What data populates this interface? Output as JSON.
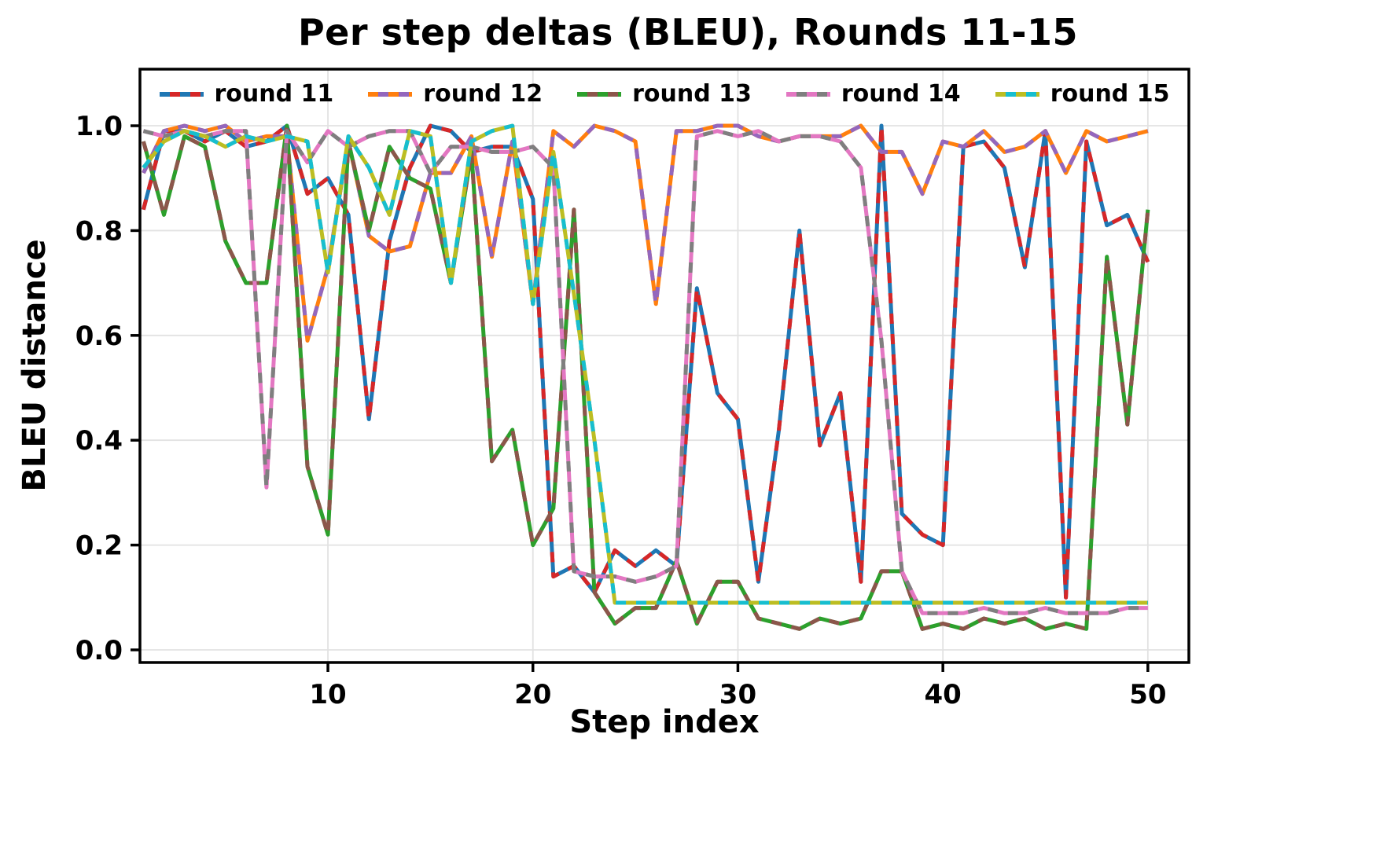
{
  "chart_data": {
    "type": "line",
    "title": "Per step deltas (BLEU), Rounds 11-15",
    "xlabel": "Step index",
    "ylabel": "BLEU distance",
    "xlim": [
      0.83,
      52.0
    ],
    "ylim": [
      -0.024,
      1.108
    ],
    "x_ticks": [
      10,
      20,
      30,
      40,
      50
    ],
    "y_ticks": [
      0.0,
      0.2,
      0.4,
      0.6,
      0.8,
      1.0
    ],
    "grid": true,
    "legend_position": "top",
    "grid_color": "#e2e2e2",
    "spine_color": "#000000",
    "x": [
      1,
      2,
      3,
      4,
      5,
      6,
      7,
      8,
      9,
      10,
      11,
      12,
      13,
      14,
      15,
      16,
      17,
      18,
      19,
      20,
      21,
      22,
      23,
      24,
      25,
      26,
      27,
      28,
      29,
      30,
      31,
      32,
      33,
      34,
      35,
      36,
      37,
      38,
      39,
      40,
      41,
      42,
      43,
      44,
      45,
      46,
      47,
      48,
      49,
      50
    ],
    "series": [
      {
        "name": "round 11",
        "colors": [
          "#1f77b4",
          "#d62728"
        ],
        "values": [
          0.84,
          0.99,
          0.99,
          0.97,
          0.99,
          0.96,
          0.97,
          1.0,
          0.87,
          0.9,
          0.83,
          0.44,
          0.78,
          0.92,
          1.0,
          0.99,
          0.95,
          0.96,
          0.96,
          0.86,
          0.14,
          0.16,
          0.11,
          0.19,
          0.16,
          0.19,
          0.16,
          0.69,
          0.49,
          0.44,
          0.13,
          0.42,
          0.8,
          0.39,
          0.49,
          0.13,
          1.0,
          0.26,
          0.22,
          0.2,
          0.96,
          0.97,
          0.92,
          0.73,
          0.99,
          0.1,
          0.97,
          0.81,
          0.83,
          0.74
        ]
      },
      {
        "name": "round 12",
        "colors": [
          "#ff7f0e",
          "#9467bd"
        ],
        "values": [
          0.91,
          0.99,
          1.0,
          0.99,
          1.0,
          0.97,
          0.98,
          0.98,
          0.59,
          0.73,
          0.97,
          0.79,
          0.76,
          0.77,
          0.91,
          0.91,
          0.98,
          0.75,
          0.97,
          0.66,
          0.99,
          0.96,
          1.0,
          0.99,
          0.97,
          0.66,
          0.99,
          0.99,
          1.0,
          1.0,
          0.98,
          0.97,
          0.98,
          0.98,
          0.98,
          1.0,
          0.95,
          0.95,
          0.87,
          0.97,
          0.96,
          0.99,
          0.95,
          0.96,
          0.99,
          0.91,
          0.99,
          0.97,
          0.98,
          0.99
        ]
      },
      {
        "name": "round 13",
        "colors": [
          "#2ca02c",
          "#8c564b"
        ],
        "values": [
          0.97,
          0.83,
          0.98,
          0.96,
          0.78,
          0.7,
          0.7,
          1.0,
          0.35,
          0.22,
          0.97,
          0.8,
          0.96,
          0.9,
          0.88,
          0.7,
          0.95,
          0.36,
          0.42,
          0.2,
          0.27,
          0.84,
          0.11,
          0.05,
          0.08,
          0.08,
          0.17,
          0.05,
          0.13,
          0.13,
          0.06,
          0.05,
          0.04,
          0.06,
          0.05,
          0.06,
          0.15,
          0.15,
          0.04,
          0.05,
          0.04,
          0.06,
          0.05,
          0.06,
          0.04,
          0.05,
          0.04,
          0.75,
          0.43,
          0.84
        ]
      },
      {
        "name": "round 14",
        "colors": [
          "#e377c2",
          "#7f7f7f"
        ],
        "values": [
          0.99,
          0.98,
          0.99,
          0.98,
          0.99,
          0.99,
          0.31,
          0.99,
          0.93,
          0.99,
          0.96,
          0.98,
          0.99,
          0.99,
          0.91,
          0.96,
          0.96,
          0.95,
          0.95,
          0.96,
          0.92,
          0.15,
          0.14,
          0.14,
          0.13,
          0.14,
          0.16,
          0.98,
          0.99,
          0.98,
          0.99,
          0.97,
          0.98,
          0.98,
          0.97,
          0.92,
          0.59,
          0.15,
          0.07,
          0.07,
          0.07,
          0.08,
          0.07,
          0.07,
          0.08,
          0.07,
          0.07,
          0.07,
          0.08,
          0.08
        ]
      },
      {
        "name": "round 15",
        "colors": [
          "#bcbd22",
          "#17becf"
        ],
        "values": [
          0.92,
          0.97,
          0.99,
          0.98,
          0.96,
          0.98,
          0.97,
          0.98,
          0.97,
          0.72,
          0.98,
          0.92,
          0.83,
          0.99,
          0.98,
          0.7,
          0.97,
          0.99,
          1.0,
          0.66,
          0.95,
          0.68,
          0.4,
          0.09,
          0.09,
          0.09,
          0.09,
          0.09,
          0.09,
          0.09,
          0.09,
          0.09,
          0.09,
          0.09,
          0.09,
          0.09,
          0.09,
          0.09,
          0.09,
          0.09,
          0.09,
          0.09,
          0.09,
          0.09,
          0.09,
          0.09,
          0.09,
          0.09,
          0.09,
          0.09
        ]
      }
    ]
  }
}
